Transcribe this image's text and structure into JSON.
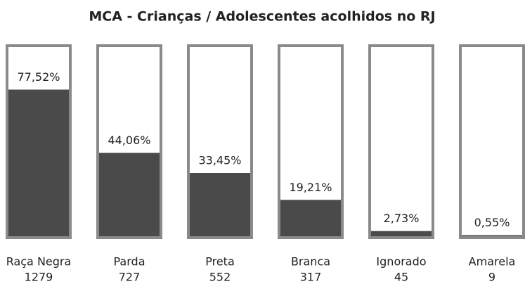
{
  "chart_data": {
    "type": "gauge_bar",
    "title": "MCA - Crianças / Adolescentes acolhidos no RJ",
    "categories": [
      "Raça Negra",
      "Parda",
      "Preta",
      "Branca",
      "Ignorado",
      "Amarela"
    ],
    "counts": [
      1279,
      727,
      552,
      317,
      45,
      9
    ],
    "values": [
      77.52,
      44.06,
      33.45,
      19.21,
      2.73,
      0.55
    ],
    "value_labels": [
      "77,52%",
      "44,06%",
      "33,45%",
      "19,21%",
      "2,73%",
      "0,55%"
    ],
    "ylim": [
      0,
      100
    ],
    "color": "#4a4a4a",
    "border_color": "#8a8a8a"
  }
}
